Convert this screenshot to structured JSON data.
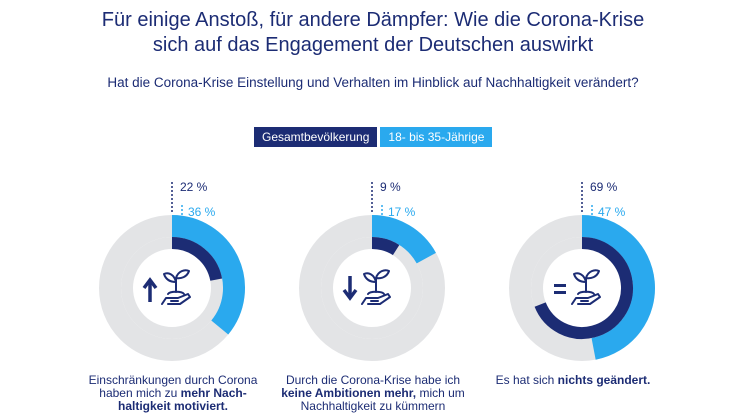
{
  "title_line1": "Für einige Anstoß, für andere Dämpfer: Wie die Corona-Krise",
  "title_line2": "sich auf das Engagement der Deutschen auswirkt",
  "subtitle": "Hat die Corona-Krise Einstellung und Verhalten im Hinblick auf Nachhaltigkeit verändert?",
  "colors": {
    "dark": "#1c2c74",
    "light": "#2aa9ee",
    "track": "#e3e4e6"
  },
  "chart_data": {
    "type": "donut",
    "series": [
      {
        "name": "Gesamtbevölkerung",
        "color": "#1c2c74",
        "values": [
          22,
          9,
          69
        ]
      },
      {
        "name": "18- bis 35-Jährige",
        "color": "#2aa9ee",
        "values": [
          36,
          17,
          47
        ]
      }
    ],
    "categories": [
      "Mehr Nachhaltigkeit motiviert",
      "Keine Ambitionen mehr",
      "Nichts geändert"
    ],
    "labels": {
      "outer": [
        "22 %",
        "9 %",
        "69 %"
      ],
      "inner": [
        "36 %",
        "17 %",
        "47 %"
      ]
    },
    "legend": [
      "Gesamtbevölkerung",
      "18- bis 35-Jährige"
    ]
  },
  "captions": [
    {
      "pre": "Einschränkungen durch Corona haben mich zu ",
      "bold": "mehr Nach-haltigkeit motiviert.",
      "post": ""
    },
    {
      "pre": "Durch die Corona-Krise habe ich ",
      "bold": "keine Ambitionen mehr,",
      "post": " mich um Nachhaltigkeit zu kümmern"
    },
    {
      "pre": "Es hat sich ",
      "bold": "nichts geändert.",
      "post": ""
    }
  ]
}
